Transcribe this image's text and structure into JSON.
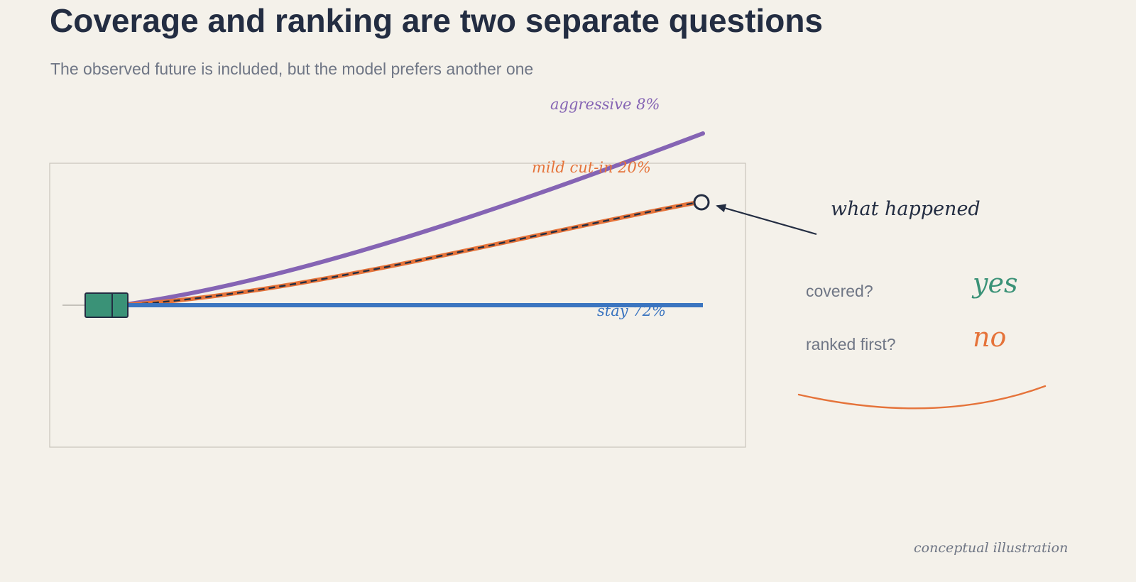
{
  "header": {
    "title": "Coverage and ranking are two separate questions",
    "subtitle": "The observed future is included, but the model prefers another one"
  },
  "trajectories": [
    {
      "id": "aggressive",
      "label": "aggressive 8%",
      "color": "#8564b4"
    },
    {
      "id": "mild",
      "label": "mild cut-in 20%",
      "color": "#e5733a"
    },
    {
      "id": "stay",
      "label": "stay 72%",
      "color": "#3b75c0"
    }
  ],
  "annotation": {
    "label": "what happened",
    "color": "#232d42"
  },
  "questions": [
    {
      "id": "covered",
      "label": "covered?",
      "answer": "yes",
      "color": "#3a9277"
    },
    {
      "id": "ranked",
      "label": "ranked first?",
      "answer": "no",
      "color": "#e5733a"
    }
  ],
  "vehicle": {
    "color": "#3a9277"
  },
  "footer": {
    "note": "conceptual illustration"
  }
}
